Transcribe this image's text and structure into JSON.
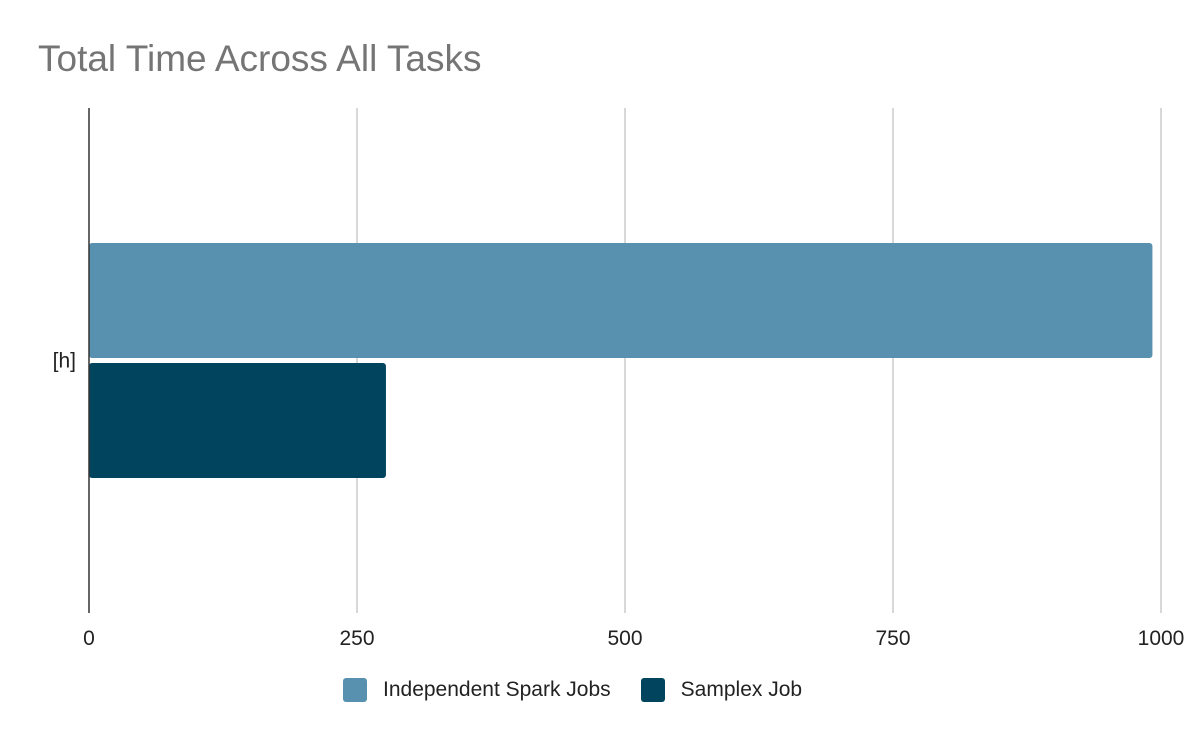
{
  "chart_data": {
    "type": "bar",
    "orientation": "horizontal",
    "title": "Total Time Across All Tasks",
    "categories": [
      "[h]"
    ],
    "series": [
      {
        "name": "Independent Spark Jobs",
        "values": [
          992
        ],
        "color": "#5891af"
      },
      {
        "name": "Samplex Job",
        "values": [
          277
        ],
        "color": "#01445d"
      }
    ],
    "xlim": [
      0,
      1000
    ],
    "xticks": [
      0,
      250,
      500,
      750,
      1000
    ],
    "grid": true,
    "legend": "bottom"
  }
}
